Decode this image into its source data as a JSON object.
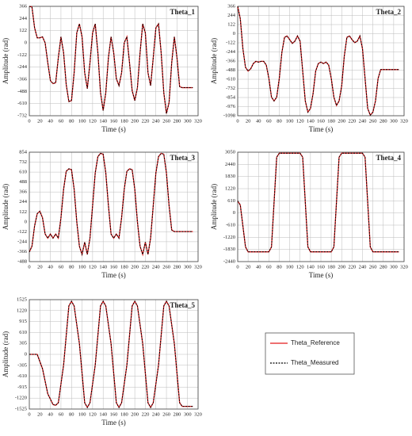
{
  "chart_data": [
    {
      "type": "line",
      "title": "Theta_1",
      "x_label": "Time (s)",
      "y_label": "Amplitude (rad)",
      "xlim": [
        0,
        320
      ],
      "xticks": [
        0,
        20,
        40,
        60,
        80,
        100,
        120,
        140,
        160,
        180,
        200,
        220,
        240,
        260,
        280,
        300,
        320
      ],
      "ylim": [
        -732,
        366
      ],
      "yticks": [
        366,
        244,
        122,
        0,
        -122,
        -244,
        -366,
        -488,
        -610,
        -732
      ],
      "grid": true,
      "x": [
        0,
        5,
        10,
        15,
        20,
        25,
        30,
        35,
        40,
        45,
        50,
        55,
        60,
        65,
        70,
        75,
        80,
        85,
        90,
        95,
        100,
        105,
        110,
        115,
        120,
        125,
        130,
        135,
        140,
        145,
        150,
        155,
        160,
        165,
        170,
        175,
        180,
        185,
        190,
        195,
        200,
        205,
        210,
        215,
        220,
        225,
        230,
        235,
        240,
        245,
        250,
        255,
        260,
        265,
        270,
        275,
        280,
        285,
        290,
        295,
        300,
        305,
        310
      ],
      "series": [
        {
          "color": "#e41a1c",
          "dash": false,
          "values": [
            366,
            360,
            150,
            50,
            50,
            60,
            0,
            -200,
            -380,
            -410,
            -400,
            -150,
            60,
            -100,
            -420,
            -590,
            -580,
            -300,
            100,
            190,
            60,
            -300,
            -460,
            -200,
            100,
            190,
            -100,
            -500,
            -680,
            -500,
            -150,
            60,
            -100,
            -360,
            -430,
            -300,
            0,
            60,
            -200,
            -480,
            -580,
            -450,
            -100,
            190,
            100,
            -300,
            -430,
            -150,
            150,
            190,
            -100,
            -500,
            -710,
            -600,
            -200,
            60,
            -150,
            -440,
            -450,
            -450,
            -450,
            -450,
            -450
          ]
        },
        {
          "color": "#000000",
          "dash": true,
          "values": [
            366,
            360,
            150,
            50,
            50,
            60,
            0,
            -200,
            -380,
            -410,
            -400,
            -150,
            60,
            -100,
            -420,
            -590,
            -580,
            -300,
            100,
            190,
            60,
            -300,
            -460,
            -200,
            100,
            190,
            -100,
            -500,
            -680,
            -500,
            -150,
            60,
            -100,
            -360,
            -430,
            -300,
            0,
            60,
            -200,
            -480,
            -580,
            -450,
            -100,
            190,
            100,
            -300,
            -430,
            -150,
            150,
            190,
            -100,
            -500,
            -710,
            -600,
            -200,
            60,
            -150,
            -440,
            -450,
            -450,
            -450,
            -450,
            -450
          ]
        }
      ]
    },
    {
      "type": "line",
      "title": "Theta_2",
      "x_label": "Time (s)",
      "y_label": "Amplitude (rad)",
      "xlim": [
        0,
        320
      ],
      "xticks": [
        0,
        20,
        40,
        60,
        80,
        100,
        120,
        140,
        160,
        180,
        200,
        220,
        240,
        260,
        280,
        300,
        320
      ],
      "ylim": [
        -1098,
        366
      ],
      "yticks": [
        366,
        244,
        122,
        0,
        -122,
        -244,
        -366,
        -488,
        -610,
        -732,
        -854,
        -976,
        -1098
      ],
      "grid": true,
      "x": [
        0,
        5,
        10,
        15,
        20,
        25,
        30,
        35,
        40,
        45,
        50,
        55,
        60,
        65,
        70,
        75,
        80,
        85,
        90,
        95,
        100,
        105,
        110,
        115,
        120,
        125,
        130,
        135,
        140,
        145,
        150,
        155,
        160,
        165,
        170,
        175,
        180,
        185,
        190,
        195,
        200,
        205,
        210,
        215,
        220,
        225,
        230,
        235,
        240,
        245,
        250,
        255,
        260,
        265,
        270,
        275,
        280,
        285,
        290,
        295,
        300,
        305,
        310
      ],
      "series": [
        {
          "color": "#e41a1c",
          "dash": false,
          "values": [
            366,
            200,
            -200,
            -450,
            -500,
            -470,
            -400,
            -370,
            -380,
            -370,
            -370,
            -420,
            -600,
            -850,
            -900,
            -850,
            -600,
            -250,
            -50,
            -30,
            -80,
            -130,
            -100,
            -30,
            -100,
            -500,
            -900,
            -1050,
            -1000,
            -800,
            -500,
            -400,
            -380,
            -400,
            -380,
            -420,
            -600,
            -850,
            -960,
            -900,
            -700,
            -300,
            -50,
            -30,
            -80,
            -120,
            -100,
            -30,
            -200,
            -600,
            -1000,
            -1090,
            -1050,
            -900,
            -600,
            -480,
            -480,
            -480,
            -480,
            -480,
            -480,
            -480,
            -480
          ]
        },
        {
          "color": "#000000",
          "dash": true,
          "values": [
            366,
            200,
            -200,
            -450,
            -500,
            -470,
            -400,
            -370,
            -380,
            -370,
            -370,
            -420,
            -600,
            -850,
            -900,
            -850,
            -600,
            -250,
            -50,
            -30,
            -80,
            -130,
            -100,
            -30,
            -100,
            -500,
            -900,
            -1050,
            -1000,
            -800,
            -500,
            -400,
            -380,
            -400,
            -380,
            -420,
            -600,
            -850,
            -960,
            -900,
            -700,
            -300,
            -50,
            -30,
            -80,
            -120,
            -100,
            -30,
            -200,
            -600,
            -1000,
            -1090,
            -1050,
            -900,
            -600,
            -480,
            -480,
            -480,
            -480,
            -480,
            -480,
            -480,
            -480
          ]
        }
      ]
    },
    {
      "type": "line",
      "title": "Theta_3",
      "x_label": "Time (s)",
      "y_label": "Amplitude (rad)",
      "xlim": [
        0,
        320
      ],
      "xticks": [
        0,
        20,
        40,
        60,
        80,
        100,
        120,
        140,
        160,
        180,
        200,
        220,
        240,
        260,
        280,
        300,
        320
      ],
      "ylim": [
        -488,
        854
      ],
      "yticks": [
        854,
        732,
        610,
        488,
        366,
        244,
        122,
        0,
        -122,
        -244,
        -366,
        -488
      ],
      "grid": true,
      "x": [
        0,
        5,
        10,
        15,
        20,
        25,
        30,
        35,
        40,
        45,
        50,
        55,
        60,
        65,
        70,
        75,
        80,
        85,
        90,
        95,
        100,
        105,
        110,
        115,
        120,
        125,
        130,
        135,
        140,
        145,
        150,
        155,
        160,
        165,
        170,
        175,
        180,
        185,
        190,
        195,
        200,
        205,
        210,
        215,
        220,
        225,
        230,
        235,
        240,
        245,
        250,
        255,
        260,
        265,
        270,
        275,
        280,
        285,
        290,
        295,
        300,
        305,
        310
      ],
      "series": [
        {
          "color": "#e41a1c",
          "dash": false,
          "values": [
            -370,
            -300,
            -50,
            100,
            130,
            50,
            -150,
            -200,
            -150,
            -200,
            -150,
            -200,
            50,
            400,
            620,
            650,
            640,
            400,
            0,
            -300,
            -400,
            -250,
            -400,
            -200,
            200,
            600,
            800,
            840,
            830,
            600,
            200,
            -150,
            -200,
            -150,
            -200,
            50,
            400,
            620,
            650,
            640,
            400,
            0,
            -300,
            -400,
            -250,
            -400,
            -200,
            200,
            600,
            800,
            840,
            830,
            600,
            200,
            -100,
            -120,
            -120,
            -120,
            -120,
            -120,
            -120,
            -120,
            -120
          ]
        },
        {
          "color": "#000000",
          "dash": true,
          "values": [
            -370,
            -300,
            -50,
            100,
            130,
            50,
            -150,
            -200,
            -150,
            -200,
            -150,
            -200,
            50,
            400,
            620,
            650,
            640,
            400,
            0,
            -300,
            -400,
            -250,
            -400,
            -200,
            200,
            600,
            800,
            840,
            830,
            600,
            200,
            -150,
            -200,
            -150,
            -200,
            50,
            400,
            620,
            650,
            640,
            400,
            0,
            -300,
            -400,
            -250,
            -400,
            -200,
            200,
            600,
            800,
            840,
            830,
            600,
            200,
            -100,
            -120,
            -120,
            -120,
            -120,
            -120,
            -120,
            -120,
            -120
          ]
        }
      ]
    },
    {
      "type": "line",
      "title": "Theta_4",
      "x_label": "Time (s)",
      "y_label": "Amplitude (rad)",
      "xlim": [
        0,
        320
      ],
      "xticks": [
        0,
        20,
        40,
        60,
        80,
        100,
        120,
        140,
        160,
        180,
        200,
        220,
        240,
        260,
        280,
        300,
        320
      ],
      "ylim": [
        -2440,
        3050
      ],
      "yticks": [
        3050,
        2440,
        1830,
        1220,
        610,
        0,
        -610,
        -1220,
        -1830,
        -2440
      ],
      "grid": true,
      "x": [
        0,
        5,
        15,
        20,
        60,
        65,
        75,
        80,
        120,
        125,
        135,
        140,
        180,
        185,
        195,
        200,
        240,
        245,
        255,
        260,
        310
      ],
      "series": [
        {
          "color": "#e41a1c",
          "dash": false,
          "values": [
            600,
            400,
            -1700,
            -1950,
            -1950,
            -1700,
            2800,
            3000,
            3000,
            2800,
            -1700,
            -1950,
            -1950,
            -1700,
            2800,
            3000,
            3000,
            2800,
            -1700,
            -1950,
            -1950
          ]
        },
        {
          "color": "#000000",
          "dash": true,
          "values": [
            600,
            400,
            -1700,
            -1950,
            -1950,
            -1700,
            2800,
            3000,
            3000,
            2800,
            -1700,
            -1950,
            -1950,
            -1700,
            2800,
            3000,
            3000,
            2800,
            -1700,
            -1950,
            -1950
          ]
        }
      ]
    },
    {
      "type": "line",
      "title": "Theta_5",
      "x_label": "Time (s)",
      "y_label": "Amplitude (rad)",
      "xlim": [
        0,
        320
      ],
      "xticks": [
        0,
        20,
        40,
        60,
        80,
        100,
        120,
        140,
        160,
        180,
        200,
        220,
        240,
        260,
        280,
        300,
        320
      ],
      "ylim": [
        -1525,
        1525
      ],
      "yticks": [
        1525,
        1220,
        915,
        610,
        305,
        0,
        -305,
        -610,
        -915,
        -1220,
        -1525
      ],
      "grid": true,
      "x": [
        0,
        15,
        25,
        35,
        45,
        50,
        55,
        65,
        75,
        80,
        85,
        95,
        105,
        110,
        115,
        125,
        135,
        140,
        145,
        155,
        165,
        170,
        175,
        185,
        195,
        200,
        205,
        215,
        225,
        230,
        235,
        245,
        255,
        260,
        265,
        275,
        285,
        290,
        310
      ],
      "series": [
        {
          "color": "#e41a1c",
          "dash": false,
          "values": [
            0,
            0,
            -400,
            -1100,
            -1400,
            -1420,
            -1350,
            -300,
            1350,
            1480,
            1350,
            300,
            -1350,
            -1480,
            -1350,
            -300,
            1350,
            1480,
            1350,
            300,
            -1350,
            -1480,
            -1350,
            -300,
            1350,
            1480,
            1350,
            300,
            -1350,
            -1480,
            -1350,
            -300,
            1350,
            1480,
            1350,
            300,
            -1350,
            -1450,
            -1450
          ]
        },
        {
          "color": "#000000",
          "dash": true,
          "values": [
            0,
            0,
            -400,
            -1100,
            -1400,
            -1420,
            -1350,
            -300,
            1350,
            1480,
            1350,
            300,
            -1350,
            -1480,
            -1350,
            -300,
            1350,
            1480,
            1350,
            300,
            -1350,
            -1480,
            -1350,
            -300,
            1350,
            1480,
            1350,
            300,
            -1350,
            -1480,
            -1350,
            -300,
            1350,
            1480,
            1350,
            300,
            -1350,
            -1450,
            -1450
          ]
        }
      ]
    }
  ],
  "legend": [
    {
      "name": "Theta_Reference",
      "color": "#e41a1c",
      "dash": false
    },
    {
      "name": "Theta_Measured",
      "color": "#000000",
      "dash": true
    }
  ]
}
